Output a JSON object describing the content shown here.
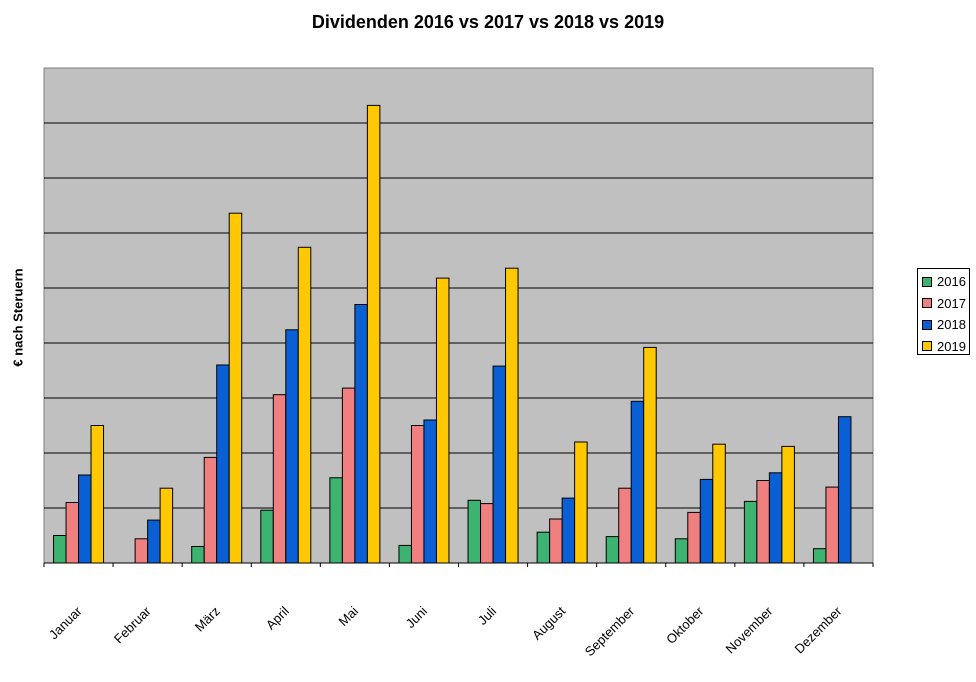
{
  "chart_data": {
    "type": "bar",
    "title": "Dividenden 2016 vs 2017 vs 2018 vs 2019",
    "xlabel": "",
    "ylabel": "€ nach Steruern",
    "ylim": [
      0,
      9
    ],
    "grid": true,
    "legend_position": "right",
    "categories": [
      "Januar",
      "Februar",
      "März",
      "April",
      "Mai",
      "Juni",
      "Juli",
      "August",
      "September",
      "Oktober",
      "November",
      "Dezember"
    ],
    "series": [
      {
        "name": "2016",
        "color": "#3cb371",
        "values": [
          0.5,
          0.0,
          0.3,
          0.96,
          1.55,
          0.32,
          1.14,
          0.56,
          0.48,
          0.44,
          1.12,
          0.26
        ]
      },
      {
        "name": "2017",
        "color": "#f08080",
        "values": [
          1.1,
          0.44,
          1.92,
          3.06,
          3.18,
          2.5,
          1.08,
          0.8,
          1.36,
          0.92,
          1.5,
          1.38
        ]
      },
      {
        "name": "2018",
        "color": "#0a5fd4",
        "values": [
          1.6,
          0.78,
          3.6,
          4.24,
          4.7,
          2.6,
          3.58,
          1.18,
          2.94,
          1.52,
          1.64,
          2.66
        ]
      },
      {
        "name": "2019",
        "color": "#ffc800",
        "values": [
          2.5,
          1.36,
          6.36,
          5.74,
          8.32,
          5.18,
          5.36,
          2.2,
          3.92,
          2.16,
          2.12,
          null
        ]
      }
    ]
  }
}
